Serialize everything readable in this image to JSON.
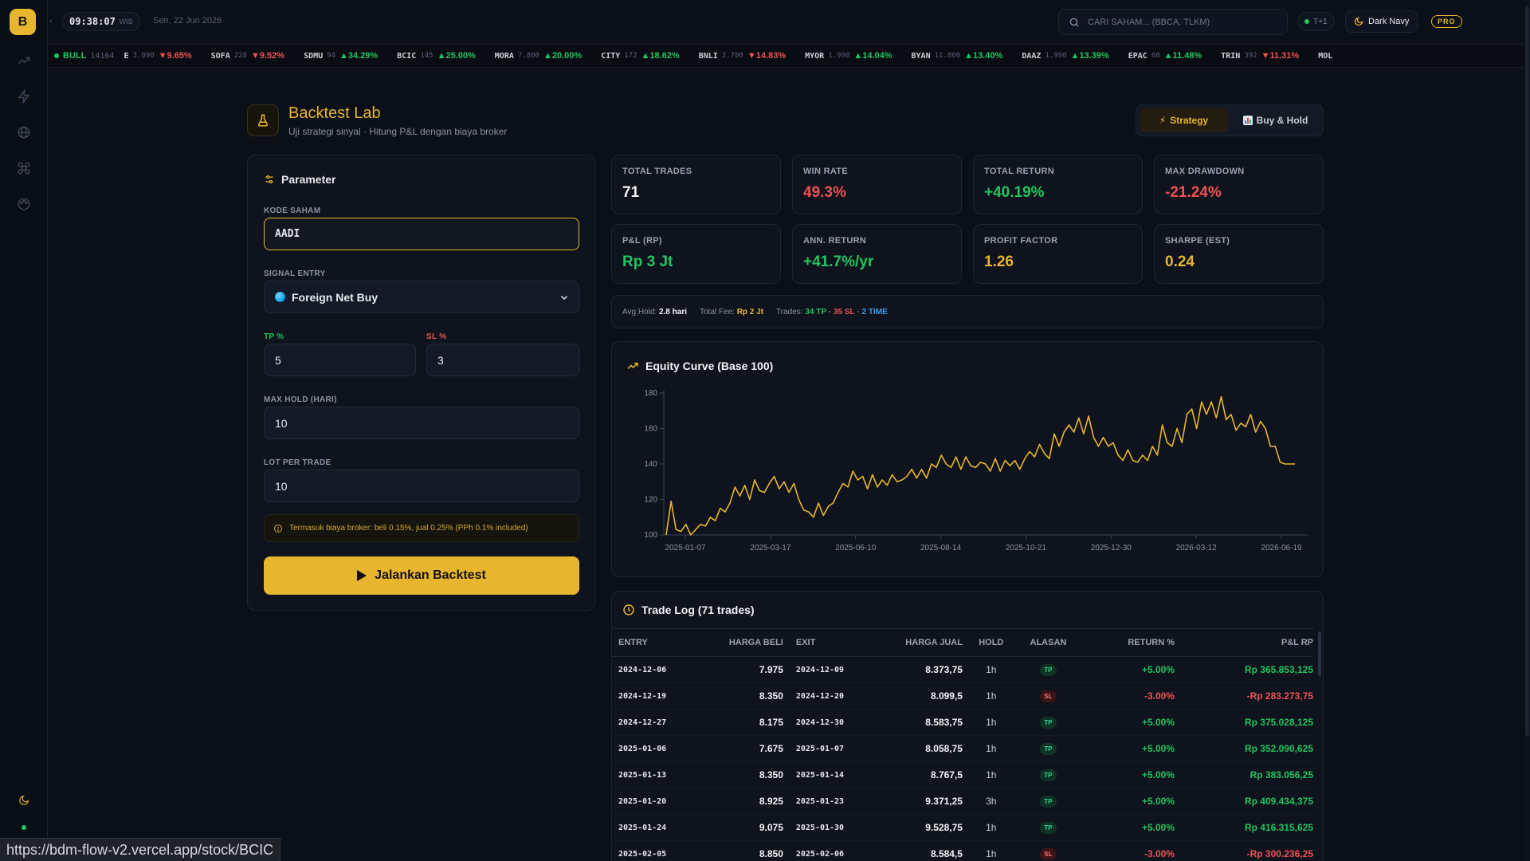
{
  "app": {
    "logo_letter": "B",
    "time": "09:38:07",
    "tz": "WIB",
    "date": "Sen, 22 Jun 2026",
    "search_placeholder": "CARI SAHAM... (BBCA, TLKM)",
    "settlement": "T+1",
    "theme": "Dark Navy",
    "plan": "PRO"
  },
  "ticker": {
    "market": "BULL",
    "index": "14164",
    "items": [
      {
        "code": "E",
        "price": "3.090",
        "change": "▼9.65%",
        "dir": "down"
      },
      {
        "code": "SOFA",
        "price": "228",
        "change": "▼9.52%",
        "dir": "down"
      },
      {
        "code": "SDMU",
        "price": "94",
        "change": "▲34.29%",
        "dir": "up"
      },
      {
        "code": "BCIC",
        "price": "145",
        "change": "▲25.00%",
        "dir": "up"
      },
      {
        "code": "MORA",
        "price": "7.800",
        "change": "▲20.00%",
        "dir": "up"
      },
      {
        "code": "CITY",
        "price": "172",
        "change": "▲18.62%",
        "dir": "up"
      },
      {
        "code": "BNLI",
        "price": "2.700",
        "change": "▼14.83%",
        "dir": "down"
      },
      {
        "code": "MYOR",
        "price": "1.990",
        "change": "▲14.04%",
        "dir": "up"
      },
      {
        "code": "BYAN",
        "price": "11.800",
        "change": "▲13.40%",
        "dir": "up"
      },
      {
        "code": "DAAZ",
        "price": "1.990",
        "change": "▲13.39%",
        "dir": "up"
      },
      {
        "code": "EPAC",
        "price": "68",
        "change": "▲11.48%",
        "dir": "up"
      },
      {
        "code": "TRIN",
        "price": "392",
        "change": "▼11.31%",
        "dir": "down"
      },
      {
        "code": "MOL",
        "price": "",
        "change": "",
        "dir": "up"
      }
    ]
  },
  "header": {
    "title": "Backtest Lab",
    "subtitle": "Uji strategi sinyal · Hitung P&L dengan biaya broker",
    "tab_strategy": "Strategy",
    "tab_buyhold": "Buy & Hold"
  },
  "params": {
    "title": "Parameter",
    "kode_label": "KODE SAHAM",
    "kode_value": "AADI",
    "signal_label": "SIGNAL ENTRY",
    "signal_value": "Foreign Net Buy",
    "tp_label": "TP %",
    "tp_value": "5",
    "sl_label": "SL %",
    "sl_value": "3",
    "maxhold_label": "MAX HOLD (HARI)",
    "maxhold_value": "10",
    "lot_label": "LOT PER TRADE",
    "lot_value": "10",
    "fee_note": "Termasuk biaya broker: beli 0.15%, jual 0.25% (PPh 0.1% included)",
    "run_label": "Jalankan Backtest"
  },
  "stats": [
    {
      "label": "TOTAL TRADES",
      "value": "71",
      "color": "white"
    },
    {
      "label": "WIN RATE",
      "value": "49.3%",
      "color": "down"
    },
    {
      "label": "TOTAL RETURN",
      "value": "+40.19%",
      "color": "up"
    },
    {
      "label": "MAX DRAWDOWN",
      "value": "-21.24%",
      "color": "down"
    },
    {
      "label": "P&L (RP)",
      "value": "Rp 3 Jt",
      "color": "up"
    },
    {
      "label": "ANN. RETURN",
      "value": "+41.7%/yr",
      "color": "up"
    },
    {
      "label": "PROFIT FACTOR",
      "value": "1.26",
      "color": "yellow"
    },
    {
      "label": "SHARPE (EST)",
      "value": "0.24",
      "color": "yellow"
    }
  ],
  "summary": {
    "avg_hold_label": "Avg Hold:",
    "avg_hold_value": "2.8 hari",
    "fee_label": "Total Fee:",
    "fee_value": "Rp 2 Jt",
    "trades_label": "Trades:",
    "tp": "34 TP",
    "sep1": "·",
    "sl": "35 SL",
    "sep2": "·",
    "time": "2 TIME"
  },
  "chart_data": {
    "type": "line",
    "title": "Equity Curve (Base 100)",
    "ylim": [
      100,
      180
    ],
    "yticks": [
      "100",
      "120",
      "140",
      "160",
      "180"
    ],
    "xticks": [
      "2025-01-07",
      "2025-03-17",
      "2025-06-10",
      "2025-08-14",
      "2025-10-21",
      "2025-12-30",
      "2026-03-12",
      "2026-06-19"
    ],
    "color": "#e8b52e",
    "series": [
      {
        "values": [
          100,
          119,
          103,
          102,
          106,
          100,
          103,
          106,
          105,
          110,
          108,
          115,
          113,
          118,
          127,
          122,
          128,
          120,
          131,
          125,
          124,
          129,
          133,
          126,
          130,
          124,
          129,
          120,
          114,
          113,
          110,
          118,
          111,
          116,
          118,
          124,
          129,
          127,
          136,
          131,
          133,
          126,
          134,
          127,
          131,
          128,
          134,
          130,
          131,
          133,
          137,
          132,
          137,
          132,
          140,
          138,
          145,
          140,
          138,
          144,
          137,
          144,
          139,
          138,
          141,
          140,
          136,
          143,
          136,
          142,
          139,
          142,
          137,
          143,
          147,
          144,
          151,
          146,
          143,
          157,
          150,
          158,
          162,
          158,
          166,
          157,
          167,
          155,
          150,
          155,
          150,
          152,
          145,
          142,
          148,
          142,
          141,
          145,
          142,
          150,
          145,
          162,
          152,
          150,
          160,
          152,
          168,
          171,
          160,
          175,
          168,
          175,
          166,
          178,
          165,
          168,
          159,
          163,
          161,
          168,
          158,
          164,
          160,
          150,
          150,
          141,
          140,
          140,
          140
        ]
      }
    ]
  },
  "log": {
    "title": "Trade Log (71 trades)",
    "columns": [
      "ENTRY",
      "HARGA BELI",
      "EXIT",
      "HARGA JUAL",
      "HOLD",
      "ALASAN",
      "RETURN %",
      "P&L RP"
    ],
    "rows": [
      {
        "entry": "2024-12-06",
        "buy": "7.975",
        "exit": "2024-12-09",
        "sell": "8.373,75",
        "hold": "1h",
        "reason": "TP",
        "ret": "+5.00%",
        "pnl": "Rp 365.853,125"
      },
      {
        "entry": "2024-12-19",
        "buy": "8.350",
        "exit": "2024-12-20",
        "sell": "8.099,5",
        "hold": "1h",
        "reason": "SL",
        "ret": "-3.00%",
        "pnl": "-Rp 283.273,75"
      },
      {
        "entry": "2024-12-27",
        "buy": "8.175",
        "exit": "2024-12-30",
        "sell": "8.583,75",
        "hold": "1h",
        "reason": "TP",
        "ret": "+5.00%",
        "pnl": "Rp 375.028,125"
      },
      {
        "entry": "2025-01-06",
        "buy": "7.675",
        "exit": "2025-01-07",
        "sell": "8.058,75",
        "hold": "1h",
        "reason": "TP",
        "ret": "+5.00%",
        "pnl": "Rp 352.090,625"
      },
      {
        "entry": "2025-01-13",
        "buy": "8.350",
        "exit": "2025-01-14",
        "sell": "8.767,5",
        "hold": "1h",
        "reason": "TP",
        "ret": "+5.00%",
        "pnl": "Rp 383.056,25"
      },
      {
        "entry": "2025-01-20",
        "buy": "8.925",
        "exit": "2025-01-23",
        "sell": "9.371,25",
        "hold": "3h",
        "reason": "TP",
        "ret": "+5.00%",
        "pnl": "Rp 409.434,375"
      },
      {
        "entry": "2025-01-24",
        "buy": "9.075",
        "exit": "2025-01-30",
        "sell": "9.528,75",
        "hold": "1h",
        "reason": "TP",
        "ret": "+5.00%",
        "pnl": "Rp 416.315,625"
      },
      {
        "entry": "2025-02-05",
        "buy": "8.850",
        "exit": "2025-02-06",
        "sell": "8.584,5",
        "hold": "1h",
        "reason": "SL",
        "ret": "-3.00%",
        "pnl": "-Rp 300.236,25"
      }
    ]
  },
  "status_url": "https://bdm-flow-v2.vercel.app/stock/BCIC"
}
